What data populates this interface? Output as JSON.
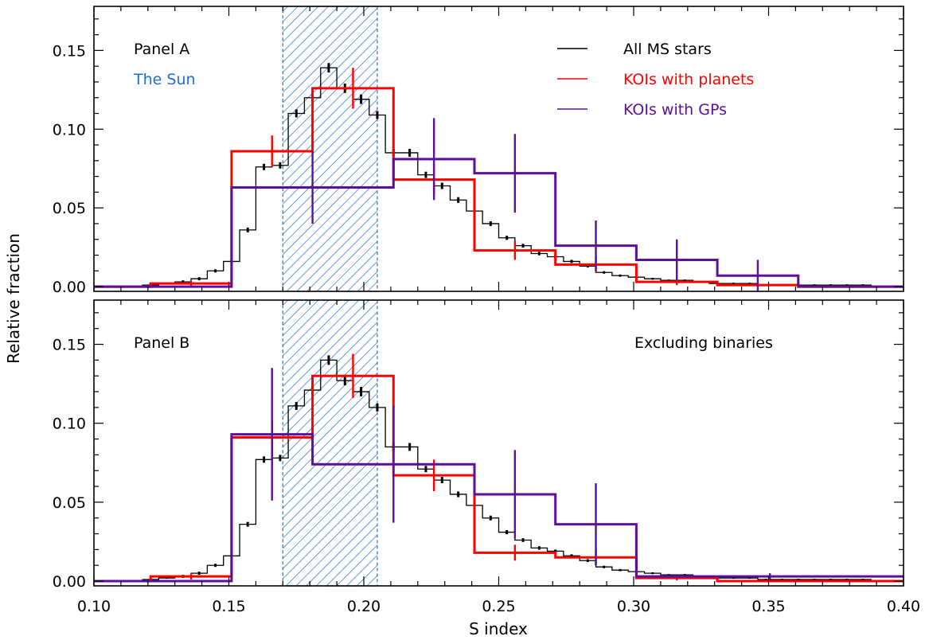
{
  "chart_data": {
    "type": "histogram",
    "x_axis": {
      "label": "S index",
      "range": [
        0.1,
        0.4
      ],
      "ticks": [
        0.1,
        0.15,
        0.2,
        0.25,
        0.3,
        0.35,
        0.4
      ],
      "tick_labels": [
        "0.10",
        "0.15",
        "0.20",
        "0.25",
        "0.30",
        "0.35",
        "0.40"
      ]
    },
    "y_axis": {
      "label": "Relative fraction",
      "range": [
        -0.003,
        0.178
      ],
      "ticks": [
        0.0,
        0.05,
        0.1,
        0.15
      ],
      "tick_labels": [
        "0.00",
        "0.05",
        "0.10",
        "0.15"
      ]
    },
    "sun_band": {
      "label": "The Sun",
      "x_range": [
        0.17,
        0.205
      ],
      "color": "#1f6fd1"
    },
    "colors": {
      "all_ms": "#000000",
      "planets": "#ff0000",
      "gps": "#5c0f99",
      "sun": "#1f6fd1"
    },
    "legend": [
      {
        "key": "all_ms",
        "label": "All MS stars",
        "color": "#000000"
      },
      {
        "key": "planets",
        "label": "KOIs with planets",
        "color": "#ff0000"
      },
      {
        "key": "gps",
        "label": "KOIs with GPs",
        "color": "#5c0f99"
      }
    ],
    "panels": [
      {
        "id": "A",
        "label": "Panel A",
        "note": "",
        "series": [
          {
            "key": "all_ms",
            "edges": [
              0.1,
              0.106,
              0.112,
              0.118,
              0.124,
              0.13,
              0.136,
              0.142,
              0.148,
              0.154,
              0.16,
              0.166,
              0.172,
              0.178,
              0.184,
              0.19,
              0.196,
              0.202,
              0.208,
              0.214,
              0.22,
              0.226,
              0.232,
              0.238,
              0.244,
              0.25,
              0.256,
              0.262,
              0.268,
              0.274,
              0.28,
              0.286,
              0.292,
              0.298,
              0.304,
              0.31,
              0.316,
              0.322,
              0.328,
              0.334,
              0.34,
              0.346,
              0.352,
              0.358,
              0.364,
              0.37,
              0.376,
              0.382,
              0.388,
              0.394,
              0.4
            ],
            "values": [
              0.0,
              0.0,
              0.0,
              0.001,
              0.002,
              0.003,
              0.005,
              0.01,
              0.016,
              0.036,
              0.076,
              0.077,
              0.11,
              0.12,
              0.139,
              0.126,
              0.119,
              0.109,
              0.085,
              0.085,
              0.071,
              0.064,
              0.055,
              0.048,
              0.04,
              0.031,
              0.026,
              0.021,
              0.019,
              0.016,
              0.013,
              0.009,
              0.007,
              0.006,
              0.005,
              0.004,
              0.004,
              0.003,
              0.002,
              0.002,
              0.002,
              0.001,
              0.001,
              0.001,
              0.001,
              0.001,
              0.001,
              0.001,
              0.0,
              0.0
            ],
            "errors": [
              0.0005,
              0.0005,
              0.0005,
              0.0005,
              0.0005,
              0.001,
              0.001,
              0.001,
              0.001,
              0.0015,
              0.002,
              0.002,
              0.0025,
              0.0025,
              0.003,
              0.003,
              0.003,
              0.0025,
              0.0025,
              0.0025,
              0.002,
              0.002,
              0.0018,
              0.0016,
              0.0015,
              0.0013,
              0.0012,
              0.0011,
              0.001,
              0.001,
              0.0009,
              0.0008,
              0.0007,
              0.0006,
              0.0006,
              0.0005,
              0.0005,
              0.0005,
              0.0005,
              0.0005,
              0.0005,
              0.0005,
              0.0005,
              0.0005,
              0.0005,
              0.0005,
              0.0005,
              0.0005,
              0.0005,
              0.0005
            ]
          },
          {
            "key": "planets",
            "edges": [
              0.1,
              0.121,
              0.151,
              0.181,
              0.211,
              0.241,
              0.271,
              0.301,
              0.331,
              0.361,
              0.4
            ],
            "values": [
              0.0,
              0.002,
              0.086,
              0.126,
              0.068,
              0.023,
              0.014,
              0.003,
              0.001,
              0.0
            ],
            "errors": [
              0.0,
              0.0015,
              0.01,
              0.013,
              0.01,
              0.006,
              0.005,
              0.002,
              0.001,
              0.0
            ]
          },
          {
            "key": "gps",
            "edges": [
              0.1,
              0.151,
              0.211,
              0.241,
              0.271,
              0.301,
              0.331,
              0.361,
              0.4
            ],
            "values": [
              0.0,
              0.063,
              0.081,
              0.072,
              0.026,
              0.017,
              0.007,
              0.0
            ],
            "errors": [
              0.0,
              0.023,
              0.026,
              0.025,
              0.016,
              0.013,
              0.01,
              0.0
            ]
          }
        ]
      },
      {
        "id": "B",
        "label": "Panel B",
        "note": "Excluding binaries",
        "series": [
          {
            "key": "all_ms",
            "edges": [
              0.1,
              0.106,
              0.112,
              0.118,
              0.124,
              0.13,
              0.136,
              0.142,
              0.148,
              0.154,
              0.16,
              0.166,
              0.172,
              0.178,
              0.184,
              0.19,
              0.196,
              0.202,
              0.208,
              0.214,
              0.22,
              0.226,
              0.232,
              0.238,
              0.244,
              0.25,
              0.256,
              0.262,
              0.268,
              0.274,
              0.28,
              0.286,
              0.292,
              0.298,
              0.304,
              0.31,
              0.316,
              0.322,
              0.328,
              0.334,
              0.34,
              0.346,
              0.352,
              0.358,
              0.364,
              0.37,
              0.376,
              0.382,
              0.388,
              0.394,
              0.4
            ],
            "values": [
              0.0,
              0.0,
              0.0,
              0.001,
              0.002,
              0.003,
              0.005,
              0.01,
              0.016,
              0.036,
              0.077,
              0.078,
              0.111,
              0.121,
              0.14,
              0.127,
              0.12,
              0.11,
              0.085,
              0.085,
              0.071,
              0.064,
              0.055,
              0.048,
              0.04,
              0.031,
              0.026,
              0.021,
              0.019,
              0.016,
              0.013,
              0.009,
              0.007,
              0.006,
              0.005,
              0.004,
              0.004,
              0.003,
              0.002,
              0.002,
              0.002,
              0.001,
              0.001,
              0.001,
              0.001,
              0.001,
              0.001,
              0.001,
              0.0,
              0.0
            ],
            "errors": [
              0.0005,
              0.0005,
              0.0005,
              0.0005,
              0.0005,
              0.001,
              0.001,
              0.001,
              0.001,
              0.0015,
              0.002,
              0.002,
              0.0025,
              0.0025,
              0.003,
              0.003,
              0.003,
              0.0025,
              0.0025,
              0.0025,
              0.002,
              0.002,
              0.0018,
              0.0016,
              0.0015,
              0.0013,
              0.0012,
              0.0011,
              0.001,
              0.001,
              0.0009,
              0.0008,
              0.0007,
              0.0006,
              0.0006,
              0.0005,
              0.0005,
              0.0005,
              0.0005,
              0.0005,
              0.0005,
              0.0005,
              0.0005,
              0.0005,
              0.0005,
              0.0005,
              0.0005,
              0.0005,
              0.0005,
              0.0005
            ]
          },
          {
            "key": "planets",
            "edges": [
              0.1,
              0.121,
              0.151,
              0.181,
              0.211,
              0.241,
              0.271,
              0.301,
              0.331,
              0.4
            ],
            "values": [
              0.0,
              0.003,
              0.091,
              0.13,
              0.067,
              0.018,
              0.015,
              0.002,
              0.0
            ],
            "errors": [
              0.0,
              0.002,
              0.012,
              0.014,
              0.01,
              0.005,
              0.005,
              0.0015,
              0.0
            ]
          },
          {
            "key": "gps",
            "edges": [
              0.1,
              0.151,
              0.181,
              0.241,
              0.271,
              0.301,
              0.4
            ],
            "values": [
              0.0,
              0.093,
              0.074,
              0.055,
              0.036,
              0.003
            ],
            "errors": [
              0.0,
              0.042,
              0.037,
              0.028,
              0.026,
              0.002
            ]
          }
        ]
      }
    ]
  }
}
